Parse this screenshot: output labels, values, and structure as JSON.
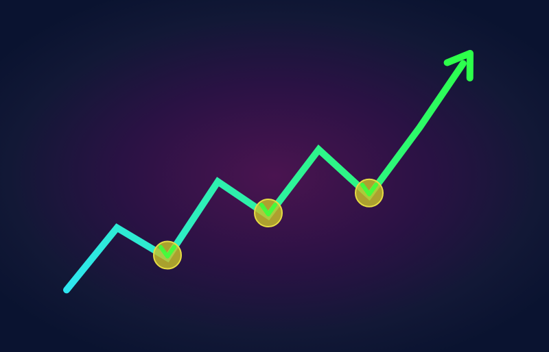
{
  "chart_data": {
    "type": "line",
    "title": "",
    "xlabel": "",
    "ylabel": "",
    "grid": false,
    "legend": "none",
    "x": [
      0,
      1,
      2,
      3,
      4,
      5,
      6,
      7,
      8
    ],
    "series": [
      {
        "values": [
          5,
          36,
          21,
          59,
          42,
          75,
          52,
          86,
          123
        ]
      }
    ],
    "xlim": [
      0,
      8
    ],
    "ylim": [
      0,
      125
    ],
    "markers_at_indices": [
      2,
      4,
      6
    ],
    "arrow_end": true,
    "colors": {
      "line_start": "#2ee6f2",
      "line_end": "#2dff4a",
      "marker_fill": "#c7c12a",
      "marker_stroke": "#e6dc44",
      "check": "#3cff3c"
    }
  }
}
